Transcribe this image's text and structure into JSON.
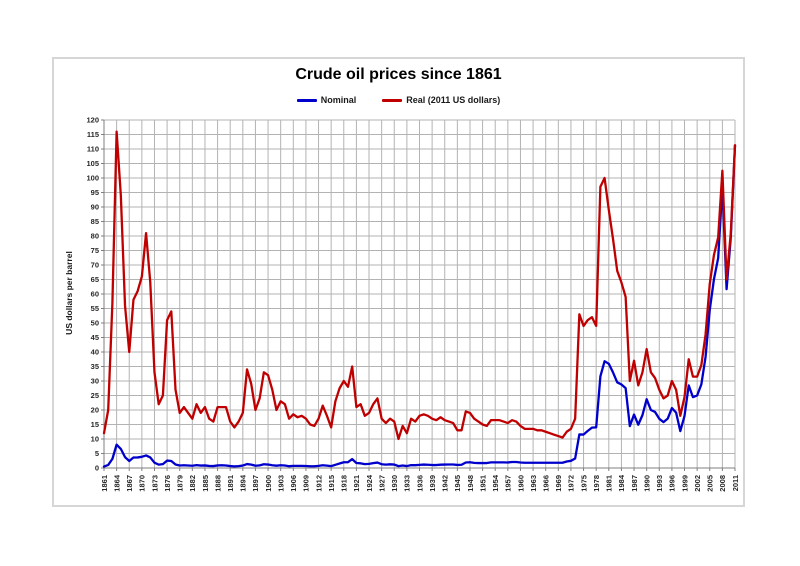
{
  "chart_data": {
    "type": "line",
    "title": "Crude oil prices since 1861",
    "xlabel": "",
    "ylabel": "US dollars per barrel",
    "x_start": 1861,
    "x_end": 2011,
    "ylim": [
      0,
      120
    ],
    "y_tick_step": 5,
    "x_tick_step": 3,
    "grid": "both",
    "legend_position": "top-center",
    "grid_color": "#b3b3b3",
    "axis_color": "#7f7f7f",
    "tick_label_color": "#262626",
    "x_tick_labels": [
      1861,
      1864,
      1867,
      1870,
      1873,
      1876,
      1879,
      1882,
      1885,
      1888,
      1891,
      1894,
      1897,
      1900,
      1903,
      1906,
      1909,
      1912,
      1915,
      1918,
      1921,
      1924,
      1927,
      1930,
      1933,
      1936,
      1939,
      1942,
      1945,
      1948,
      1951,
      1954,
      1957,
      1960,
      1963,
      1966,
      1969,
      1972,
      1975,
      1978,
      1981,
      1984,
      1987,
      1990,
      1993,
      1996,
      1999,
      2002,
      2005,
      2008,
      2011
    ],
    "y_tick_labels": [
      0,
      5,
      10,
      15,
      20,
      25,
      30,
      35,
      40,
      45,
      50,
      55,
      60,
      65,
      70,
      75,
      80,
      85,
      90,
      95,
      100,
      105,
      110,
      115,
      120
    ],
    "series": [
      {
        "name": "Nominal",
        "color": "#0000cc",
        "values": [
          0.49,
          1.05,
          3.15,
          8.06,
          6.59,
          3.74,
          2.41,
          3.63,
          3.64,
          3.86,
          4.34,
          3.64,
          1.83,
          1.17,
          1.35,
          2.56,
          2.42,
          1.19,
          0.86,
          0.95,
          0.86,
          0.78,
          1.0,
          0.84,
          0.88,
          0.71,
          0.67,
          0.88,
          0.94,
          0.87,
          0.67,
          0.56,
          0.64,
          0.84,
          1.36,
          1.18,
          0.79,
          0.91,
          1.29,
          1.19,
          0.96,
          0.8,
          0.94,
          0.86,
          0.62,
          0.73,
          0.72,
          0.72,
          0.7,
          0.61,
          0.61,
          0.74,
          0.95,
          0.81,
          0.64,
          1.1,
          1.56,
          1.98,
          2.01,
          3.07,
          1.73,
          1.61,
          1.34,
          1.43,
          1.68,
          1.88,
          1.3,
          1.17,
          1.27,
          1.19,
          0.65,
          0.87,
          0.67,
          1.0,
          0.97,
          1.09,
          1.18,
          1.13,
          1.02,
          1.02,
          1.14,
          1.19,
          1.2,
          1.21,
          1.05,
          1.12,
          1.9,
          1.99,
          1.78,
          1.71,
          1.71,
          1.71,
          1.93,
          1.93,
          1.93,
          1.93,
          1.9,
          2.08,
          2.08,
          1.9,
          1.8,
          1.8,
          1.8,
          1.8,
          1.8,
          1.8,
          1.8,
          1.8,
          1.8,
          1.8,
          2.24,
          2.48,
          3.29,
          11.58,
          11.53,
          12.8,
          13.92,
          14.02,
          31.61,
          36.83,
          35.93,
          32.97,
          29.55,
          28.78,
          27.56,
          14.43,
          18.44,
          14.92,
          18.23,
          23.73,
          20.0,
          19.32,
          16.97,
          15.82,
          17.02,
          20.67,
          19.09,
          12.72,
          17.97,
          28.5,
          24.44,
          25.02,
          28.83,
          38.27,
          54.52,
          65.14,
          72.39,
          97.26,
          61.67,
          79.5,
          111.26
        ]
      },
      {
        "name": "Real (2011 US dollars)",
        "color": "#c00000",
        "values": [
          12,
          20,
          57,
          116,
          94,
          56,
          40,
          58,
          61,
          66,
          81,
          64,
          33,
          22,
          25,
          51,
          54,
          27,
          19,
          21,
          19,
          17,
          22,
          19,
          21,
          17,
          16,
          21,
          21,
          21,
          16,
          14,
          16,
          19,
          34,
          29,
          20,
          24,
          33,
          32,
          27,
          20,
          23,
          22,
          17,
          18.5,
          17.5,
          18,
          17,
          15,
          14.5,
          17,
          21.5,
          18,
          14,
          23,
          27.5,
          30,
          28,
          35,
          21,
          22,
          18,
          19,
          22,
          24,
          17,
          15.5,
          17,
          16,
          10,
          14.5,
          12,
          17,
          16,
          18,
          18.5,
          18,
          17,
          16.5,
          17.5,
          16.5,
          16,
          15.5,
          13,
          13,
          19.5,
          19,
          17,
          16,
          15,
          14.5,
          16.5,
          16.5,
          16.5,
          16,
          15.5,
          16.5,
          16,
          14.5,
          13.5,
          13.5,
          13.5,
          13,
          13,
          12.5,
          12,
          11.5,
          11,
          10.5,
          12.5,
          13.5,
          17,
          53,
          49,
          51,
          52,
          49,
          97,
          100,
          89,
          79,
          68,
          64,
          59,
          30,
          37,
          28.5,
          33,
          41,
          33,
          31,
          27,
          24,
          25,
          30,
          27,
          18,
          24.5,
          37.5,
          31.5,
          31.5,
          35.5,
          46,
          63.5,
          73.5,
          79.5,
          102.5,
          65,
          81,
          111.3
        ]
      }
    ]
  }
}
